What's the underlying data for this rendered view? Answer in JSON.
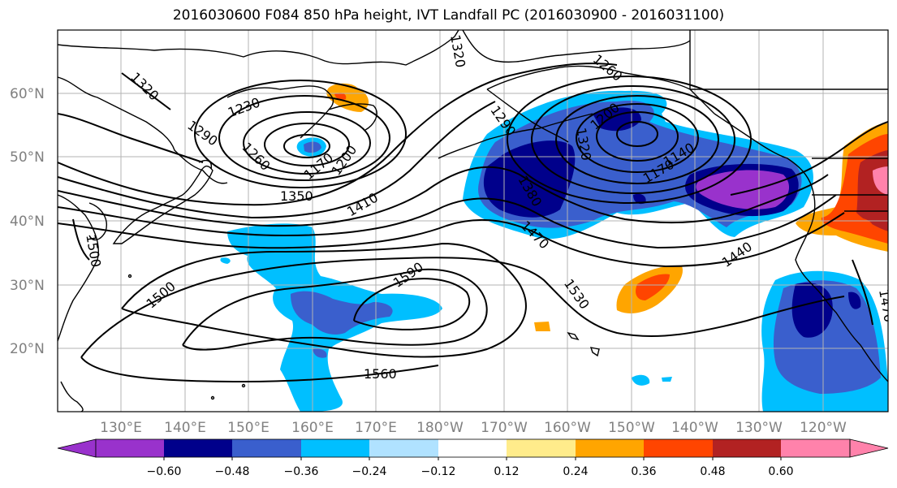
{
  "title": "2016030600 F084 850 hPa height, IVT Landfall PC (2016030900 - 2016031100)",
  "lat_labels": [
    "60°N",
    "50°N",
    "40°N",
    "30°N",
    "20°N"
  ],
  "lon_labels": [
    "130°E",
    "140°E",
    "150°E",
    "160°E",
    "170°E",
    "180°W",
    "170°W",
    "160°W",
    "150°W",
    "140°W",
    "130°W",
    "120°W"
  ],
  "contour_labels": [
    "1320",
    "1230",
    "1290",
    "1260",
    "1170",
    "1200",
    "1350",
    "1410",
    "1500",
    "1500",
    "1590",
    "1560",
    "1320",
    "1290",
    "1320",
    "1260",
    "1200",
    "1170",
    "1140",
    "1380",
    "1470",
    "1530",
    "1440",
    "1470"
  ],
  "colorbar": {
    "colors": [
      "#9932cc",
      "#00008b",
      "#3a5fcd",
      "#00bfff",
      "#b0e2ff",
      "#ffffff",
      "#ffec8b",
      "#ffa500",
      "#ff4500",
      "#b22222",
      "#ff82ab"
    ],
    "tick_labels": [
      "−0.60",
      "−0.48",
      "−0.36",
      "−0.24",
      "−0.12",
      "0.12",
      "0.24",
      "0.36",
      "0.48",
      "0.60"
    ]
  }
}
